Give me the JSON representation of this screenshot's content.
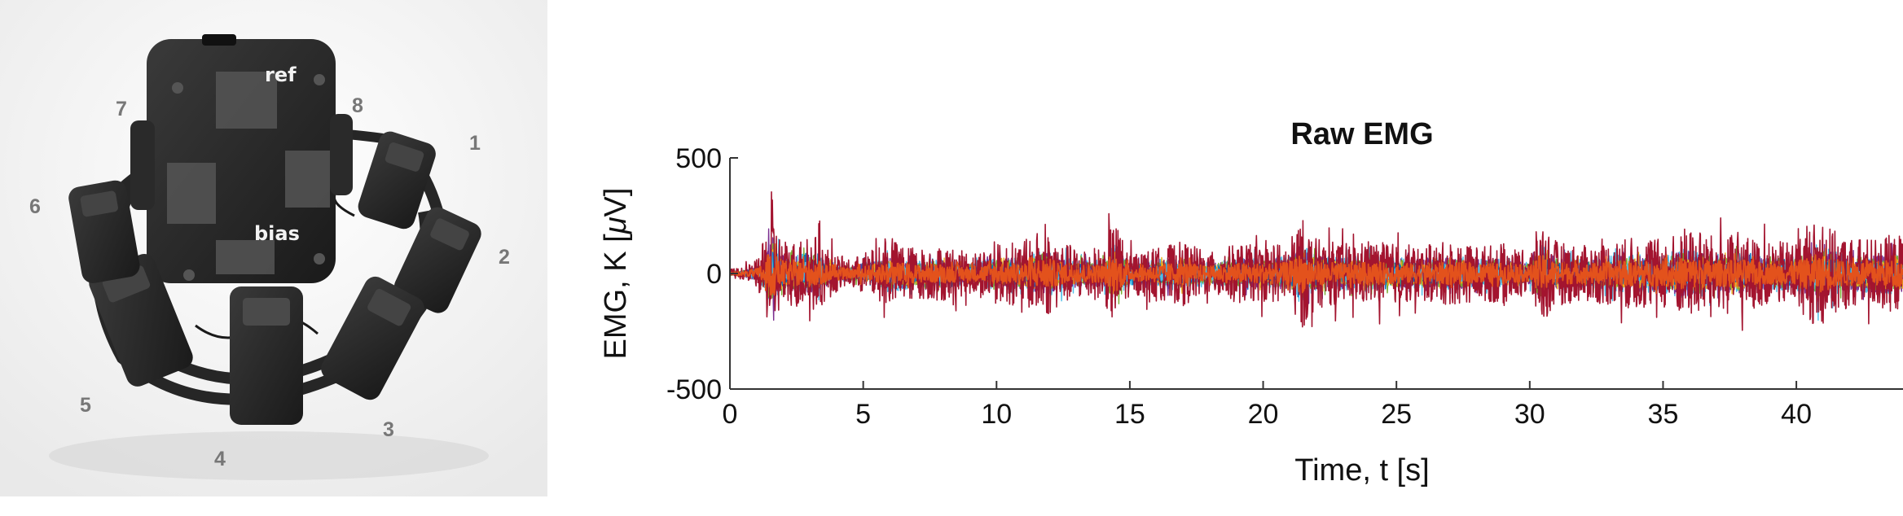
{
  "photo": {
    "channel_labels": [
      "1",
      "2",
      "3",
      "4",
      "5",
      "6",
      "7",
      "8"
    ],
    "pad_labels": {
      "ref": "ref",
      "bias": "bias"
    }
  },
  "chart_data": {
    "type": "line",
    "title": "Raw EMG",
    "xlabel": "Time, t [s]",
    "ylabel_prefix": "EMG,  K  [",
    "ylabel_mu": "μ",
    "ylabel_suffix": "V]",
    "xlim": [
      0,
      44
    ],
    "ylim": [
      -500,
      500
    ],
    "x_ticks": [
      0,
      5,
      10,
      15,
      20,
      25,
      30,
      35,
      40
    ],
    "y_ticks": [
      500,
      0,
      -500
    ],
    "grid": false,
    "legend": "none",
    "colors": [
      "#a3142f",
      "#e3521c",
      "#4fbfe8",
      "#7b2d8e",
      "#77ac30",
      "#edb120",
      "#0072bd"
    ],
    "envelope": {
      "time_s": [
        0,
        0.5,
        1.0,
        1.3,
        1.6,
        1.8,
        2.2,
        2.8,
        3.2,
        3.6,
        4.0,
        4.5,
        5.0,
        5.5,
        6.0,
        7.0,
        8.0,
        9.0,
        10.0,
        11.0,
        11.8,
        12.5,
        13.0,
        14.0,
        14.4,
        15.0,
        16.0,
        17.0,
        18.0,
        19.0,
        20.0,
        21.0,
        21.4,
        22.0,
        23.0,
        24.0,
        25.0,
        26.0,
        27.0,
        28.0,
        29.0,
        30.0,
        30.4,
        31.0,
        32.0,
        33.0,
        34.0,
        35.0,
        35.8,
        37.0,
        38.0,
        39.0,
        40.0,
        40.8,
        41.5,
        42.0,
        43.0,
        44.0
      ],
      "amplitude_uv": [
        20,
        25,
        60,
        150,
        330,
        180,
        140,
        160,
        170,
        120,
        80,
        60,
        90,
        110,
        150,
        110,
        120,
        90,
        130,
        140,
        200,
        130,
        120,
        110,
        240,
        90,
        110,
        140,
        90,
        130,
        120,
        140,
        250,
        150,
        130,
        140,
        130,
        120,
        140,
        120,
        130,
        90,
        240,
        140,
        120,
        140,
        160,
        150,
        200,
        160,
        170,
        130,
        150,
        240,
        180,
        150,
        160,
        170
      ]
    }
  }
}
